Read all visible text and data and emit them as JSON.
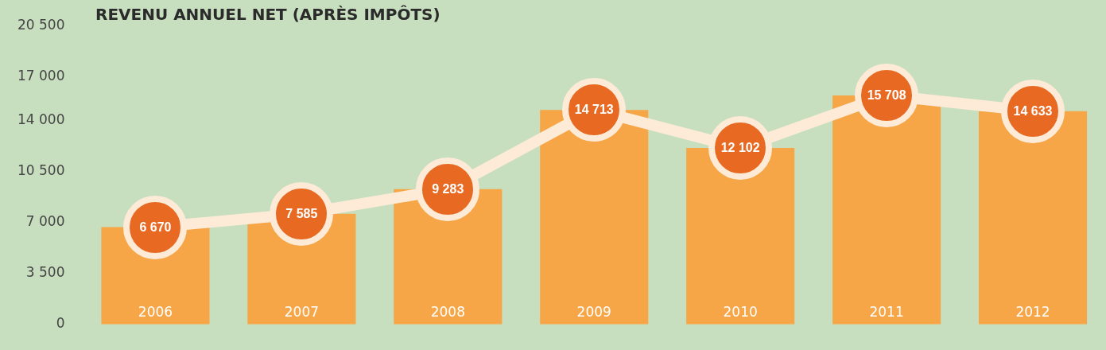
{
  "chart_data": {
    "type": "bar",
    "title": "REVENU ANNUEL NET (APRÈS IMPÔTS)",
    "categories": [
      "2006",
      "2007",
      "2008",
      "2009",
      "2010",
      "2011",
      "2012"
    ],
    "values": [
      6670,
      7585,
      9283,
      14713,
      12102,
      15708,
      14633
    ],
    "value_labels": [
      "6 670",
      "7 585",
      "9 283",
      "14 713",
      "12 102",
      "15 708",
      "14 633"
    ],
    "color": "#f6a646",
    "ylim": [
      0,
      20500
    ],
    "yticks": [
      0,
      {
        "value": 3500,
        "label": "3 500"
      },
      {
        "value": 7000,
        "label": "7 000"
      },
      {
        "value": 10500,
        "label": "10 500"
      },
      {
        "value": 14000,
        "label": "14 000"
      },
      {
        "value": 17000,
        "label": "17 000"
      },
      {
        "value": 20500,
        "label": "20 500"
      }
    ],
    "grid": false,
    "legend": false
  }
}
